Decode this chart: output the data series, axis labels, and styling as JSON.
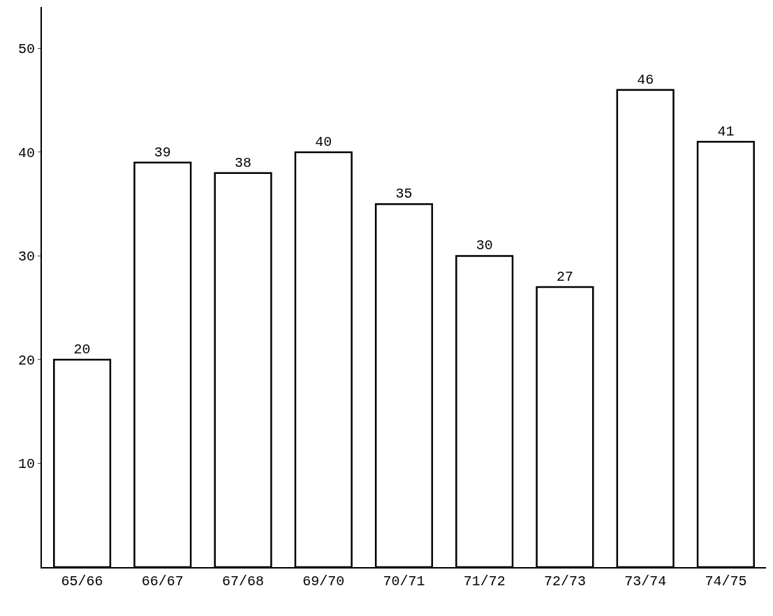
{
  "chart_data": {
    "type": "bar",
    "categories": [
      "65/66",
      "66/67",
      "67/68",
      "69/70",
      "70/71",
      "71/72",
      "72/73",
      "73/74",
      "74/75"
    ],
    "values": [
      20,
      39,
      38,
      40,
      35,
      30,
      27,
      46,
      41
    ],
    "color": "#ffffff",
    "ylim": [
      0,
      54
    ],
    "yticks": [
      10,
      20,
      30,
      40,
      50
    ],
    "data_labels": true
  }
}
